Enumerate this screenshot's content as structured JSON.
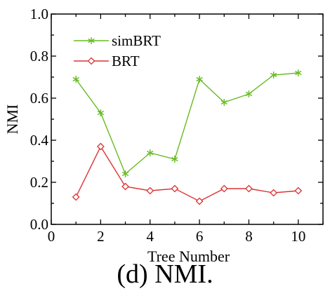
{
  "chart_data": {
    "type": "line",
    "title": "",
    "xlabel": "Tree Number",
    "ylabel": "NMI",
    "xlim": [
      0,
      11
    ],
    "ylim": [
      0.0,
      1.0
    ],
    "x_ticks": [
      "0",
      "2",
      "4",
      "6",
      "8",
      "10"
    ],
    "y_ticks": [
      "0.0",
      "0.2",
      "0.4",
      "0.6",
      "0.8",
      "1.0"
    ],
    "grid": false,
    "legend_position": "top-left",
    "x": [
      1,
      2,
      3,
      4,
      5,
      6,
      7,
      8,
      9,
      10
    ],
    "series": [
      {
        "name": "simBRT",
        "color": "#66bb22",
        "marker": "asterisk",
        "values": [
          0.69,
          0.53,
          0.24,
          0.34,
          0.31,
          0.69,
          0.58,
          0.62,
          0.71,
          0.72
        ]
      },
      {
        "name": "BRT",
        "color": "#dd3333",
        "marker": "diamond-open",
        "values": [
          0.13,
          0.37,
          0.18,
          0.16,
          0.17,
          0.11,
          0.17,
          0.17,
          0.15,
          0.16
        ]
      }
    ]
  },
  "caption": "(d) NMI."
}
